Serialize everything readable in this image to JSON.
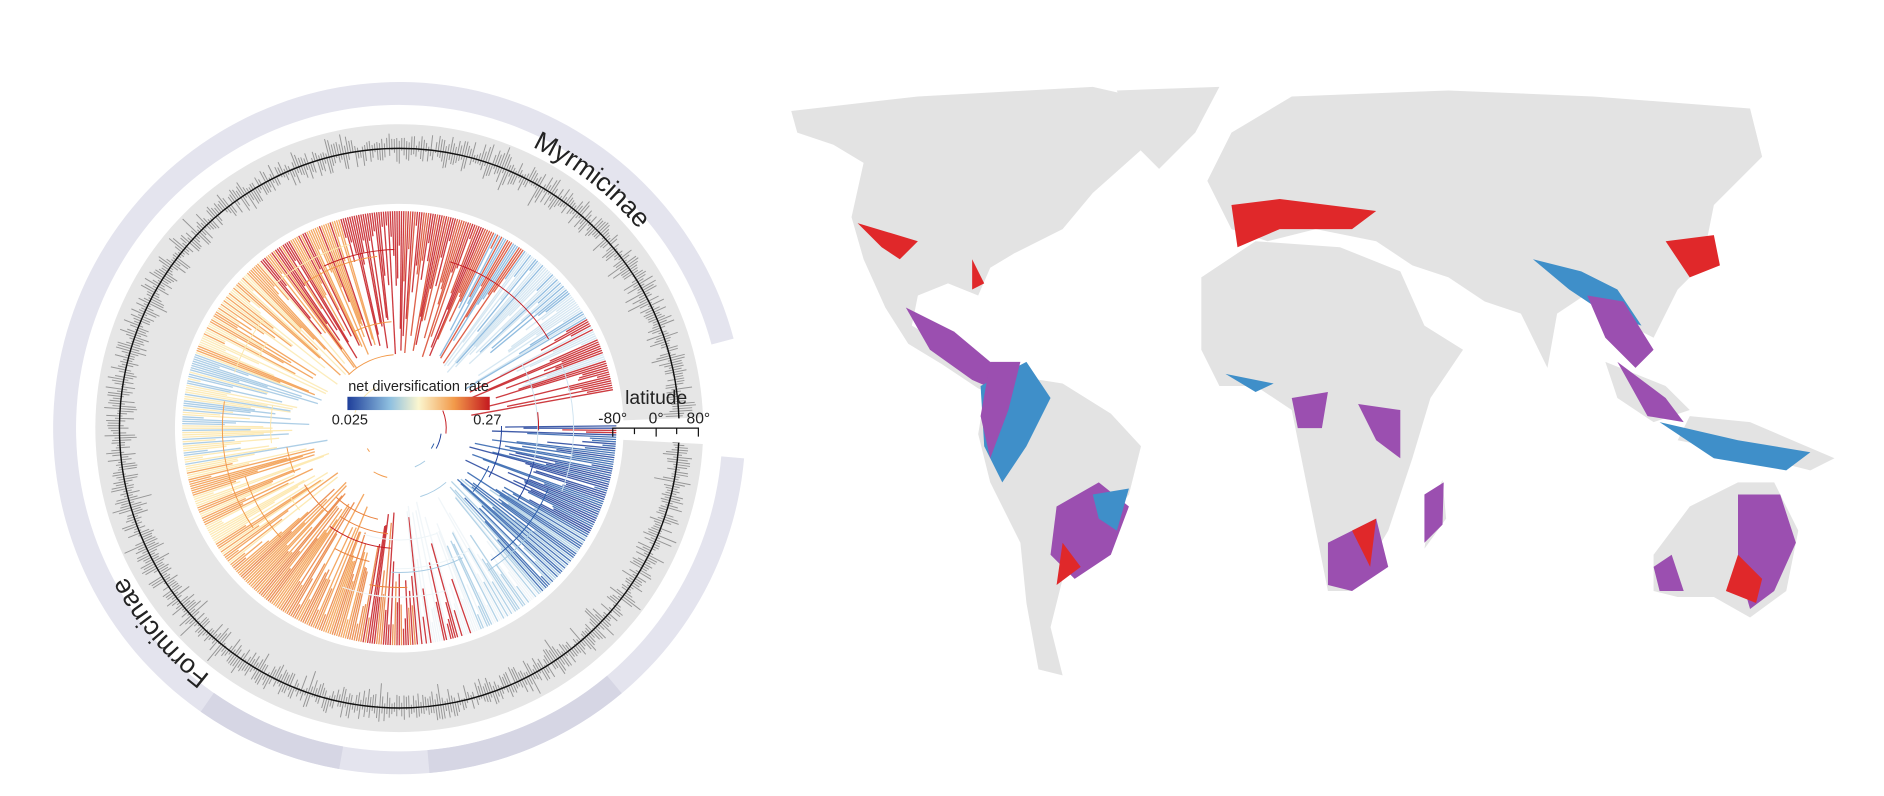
{
  "tree": {
    "clades": [
      "Myrmicinae",
      "Formicinae"
    ],
    "legend": {
      "title": "net diversification rate",
      "min": "0.025",
      "max": "0.27"
    },
    "latitude": {
      "title": "latitude",
      "ticks": [
        "-80°",
        "0°",
        "80°"
      ]
    }
  }
}
